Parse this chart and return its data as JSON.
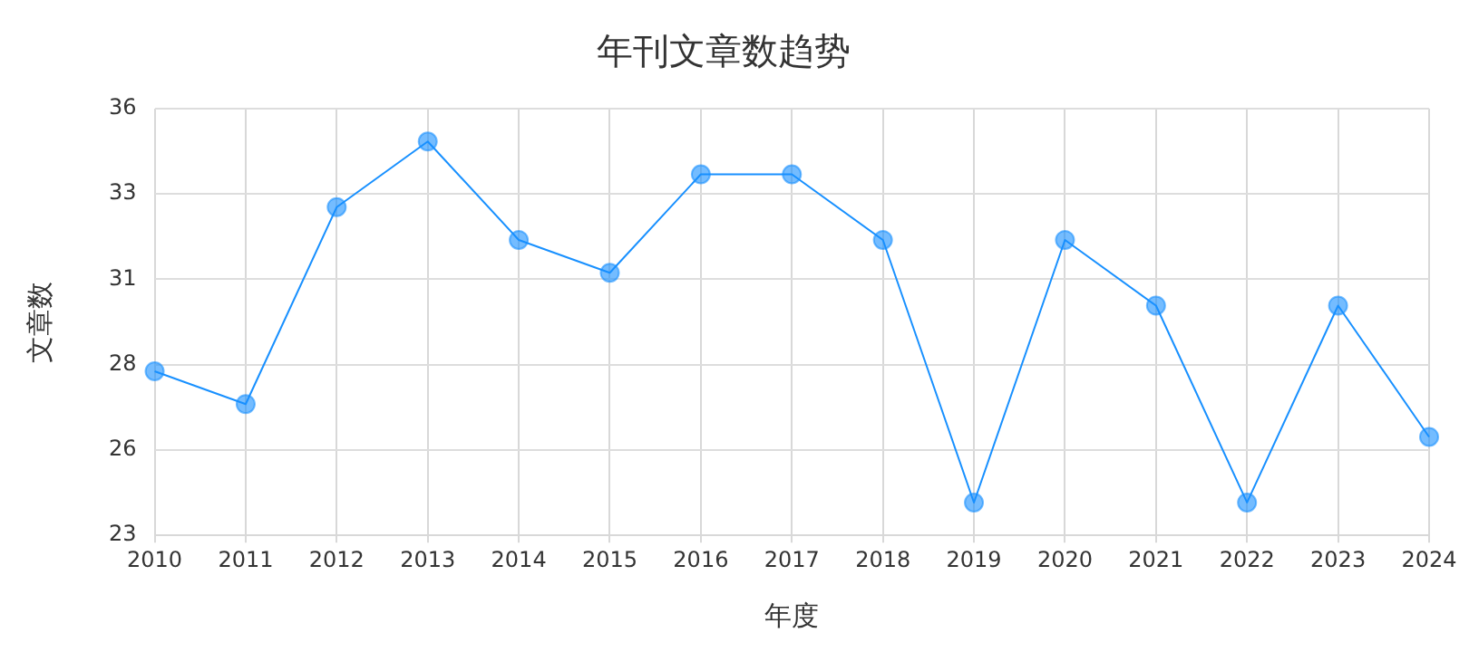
{
  "chart_data": {
    "type": "line",
    "title": "年刊文章数趋势",
    "xlabel": "年度",
    "ylabel": "文章数",
    "categories": [
      "2010",
      "2011",
      "2012",
      "2013",
      "2014",
      "2015",
      "2016",
      "2017",
      "2018",
      "2019",
      "2020",
      "2021",
      "2022",
      "2023",
      "2024"
    ],
    "series": [
      {
        "color": "#1890ff",
        "values": [
          28,
          27,
          33,
          35,
          32,
          31,
          34,
          34,
          32,
          24,
          32,
          30,
          24,
          30,
          26
        ]
      }
    ],
    "ylim": [
      23,
      36
    ],
    "yticks": [
      {
        "value": 23,
        "label": "23"
      },
      {
        "value": 25.6,
        "label": "26"
      },
      {
        "value": 28.2,
        "label": "28"
      },
      {
        "value": 30.8,
        "label": "31"
      },
      {
        "value": 33.4,
        "label": "33"
      },
      {
        "value": 36,
        "label": "36"
      }
    ],
    "grid": true,
    "legend": false,
    "marker": "circle",
    "line_style": "solid"
  }
}
